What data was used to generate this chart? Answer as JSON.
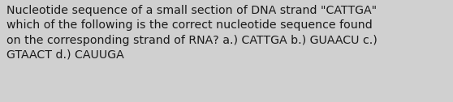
{
  "text": "Nucleotide sequence of a small section of DNA strand \"CATTGA\"\nwhich of the following is the correct nucleotide sequence found\non the corresponding strand of RNA? a.) CATTGA b.) GUAACU c.)\nGTAACT d.) CAUUGA",
  "background_color": "#d0d0d0",
  "text_color": "#1a1a1a",
  "font_size": 10.2,
  "fig_width": 5.58,
  "fig_height": 1.26,
  "dpi": 100
}
